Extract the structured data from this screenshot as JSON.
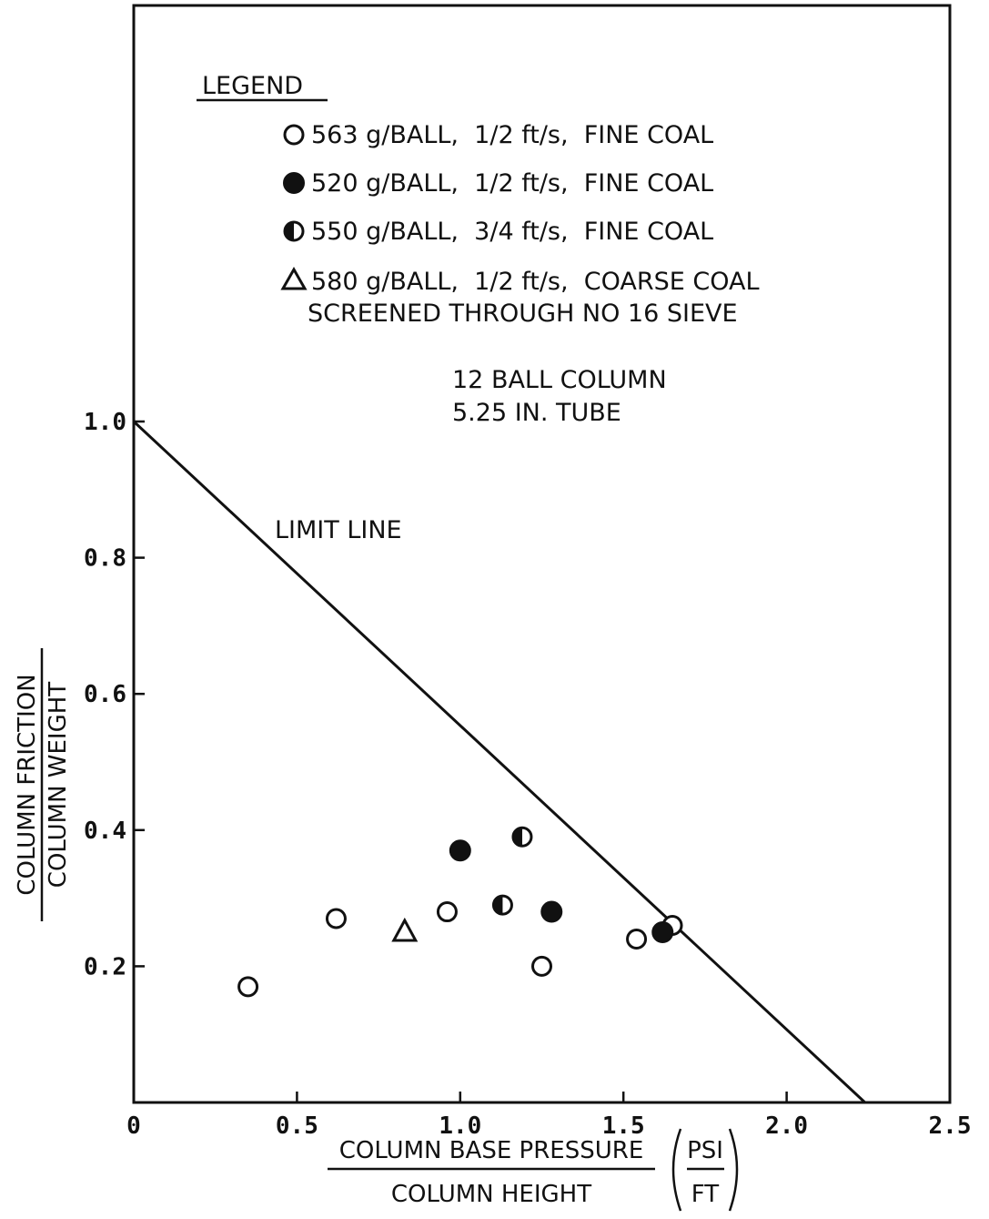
{
  "chart_data": {
    "type": "scatter",
    "xlim": [
      0,
      2.5
    ],
    "ylim": [
      0,
      1.0
    ],
    "x_ticks": [
      "0",
      "0.5",
      "1.0",
      "1.5",
      "2.0",
      "2.5"
    ],
    "y_ticks": [
      "0.2",
      "0.4",
      "0.6",
      "0.8",
      "1.0"
    ],
    "xlabel": {
      "numerator": "COLUMN BASE PRESSURE",
      "denominator": "COLUMN HEIGHT",
      "unit_numerator": "PSI",
      "unit_denominator": "FT"
    },
    "ylabel": {
      "numerator": "COLUMN FRICTION",
      "denominator": "COLUMN WEIGHT"
    },
    "legend": {
      "title": "LEGEND",
      "entries": [
        {
          "marker": "open-circle",
          "text": "563 g/BALL,  1/2 ft/s,  FINE COAL"
        },
        {
          "marker": "filled-circle",
          "text": "520 g/BALL,  1/2 ft/s,  FINE COAL"
        },
        {
          "marker": "half-circle",
          "text": "550 g/BALL,  3/4 ft/s,  FINE COAL"
        },
        {
          "marker": "triangle",
          "text": "580 g/BALL,  1/2 ft/s,  COARSE COAL",
          "text2": "SCREENED THROUGH NO 16 SIEVE"
        }
      ]
    },
    "annotations": {
      "column_line1": "12 BALL COLUMN",
      "column_line2": "5.25 IN. TUBE",
      "limit_line_label": "LIMIT LINE"
    },
    "limit_line": {
      "x": [
        0,
        2.24
      ],
      "y": [
        1.0,
        0.0
      ]
    },
    "series": [
      {
        "marker": "open-circle",
        "points": [
          [
            0.35,
            0.17
          ],
          [
            0.62,
            0.27
          ],
          [
            0.96,
            0.28
          ],
          [
            1.25,
            0.2
          ],
          [
            1.54,
            0.24
          ],
          [
            1.65,
            0.26
          ]
        ]
      },
      {
        "marker": "filled-circle",
        "points": [
          [
            1.0,
            0.37
          ],
          [
            1.28,
            0.28
          ],
          [
            1.62,
            0.25
          ]
        ]
      },
      {
        "marker": "half-circle",
        "points": [
          [
            1.19,
            0.39
          ],
          [
            1.13,
            0.29
          ]
        ]
      },
      {
        "marker": "triangle",
        "points": [
          [
            0.83,
            0.25
          ]
        ]
      }
    ]
  }
}
